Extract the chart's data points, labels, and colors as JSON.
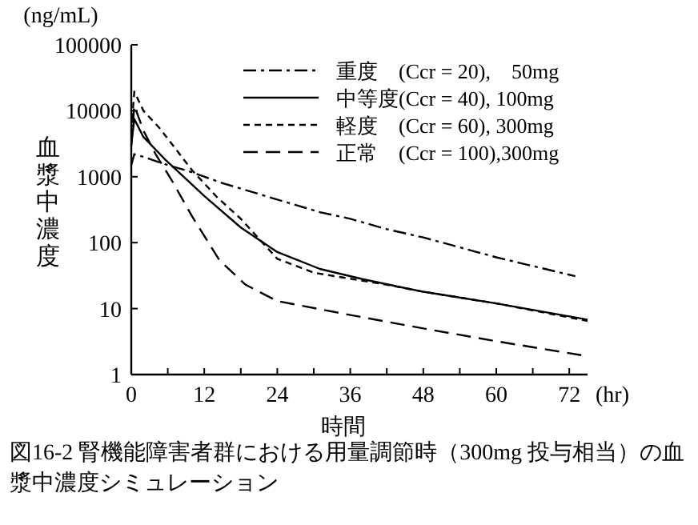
{
  "chart_data": {
    "type": "line",
    "title": "図16-2 腎機能障害者群における用量調節時（300mg 投与相当）の血漿中濃度シミュレーション",
    "xlabel": "時間",
    "ylabel": "血漿中濃度",
    "annotations": [
      "(ng/mL)",
      "(hr)"
    ],
    "log": "y",
    "xlim": [
      0,
      75
    ],
    "ylim": [
      1,
      100000
    ],
    "xticks": [
      0,
      {
        "value": 6,
        "label": null
      },
      12,
      {
        "value": 18,
        "label": null
      },
      24,
      {
        "value": 30,
        "label": null
      },
      36,
      {
        "value": 42,
        "label": null
      },
      48,
      {
        "value": 54,
        "label": null
      },
      60,
      {
        "value": 66,
        "label": null
      },
      72
    ],
    "yticks": [
      1,
      10,
      100,
      1000,
      10000,
      100000
    ],
    "grid": false,
    "legend": "top right",
    "marker": "none",
    "series": [
      {
        "name": "重度　(Ccr = 20),　50mg",
        "color": "#000000",
        "line_style": "dashdot",
        "x": [
          0,
          0.5,
          2,
          6,
          9,
          15,
          24,
          31,
          36,
          42,
          48,
          60,
          73
        ],
        "values": [
          1500,
          2200,
          2000,
          1500,
          1250,
          800,
          450,
          290,
          230,
          160,
          120,
          60,
          31
        ]
      },
      {
        "name": "中等度(Ccr = 40), 100mg",
        "color": "#000000",
        "line_style": "solid",
        "x": [
          0,
          0.5,
          2,
          5.5,
          12,
          18,
          24,
          31,
          38,
          48,
          60,
          75
        ],
        "values": [
          3000,
          7500,
          4000,
          1850,
          510,
          170,
          72,
          40,
          28,
          18,
          12,
          6.8
        ]
      },
      {
        "name": "軽度　(Ccr = 60), 300mg",
        "color": "#000000",
        "line_style": "dashed",
        "x": [
          0,
          0.5,
          2,
          4.7,
          10,
          14,
          18,
          24,
          30,
          42,
          48,
          60,
          75
        ],
        "values": [
          5000,
          19500,
          10000,
          5400,
          1250,
          500,
          230,
          57,
          35,
          23,
          18,
          12,
          6.5
        ]
      },
      {
        "name": "正常　(Ccr = 100),300mg",
        "color": "#000000",
        "line_style": "longdash",
        "x": [
          0,
          0.5,
          2,
          4,
          6.6,
          10,
          14.5,
          18.8,
          24,
          36,
          48,
          60,
          75
        ],
        "values": [
          3000,
          12000,
          5000,
          2200,
          900,
          250,
          54,
          23,
          13,
          8,
          5,
          3.2,
          1.9
        ]
      }
    ]
  }
}
